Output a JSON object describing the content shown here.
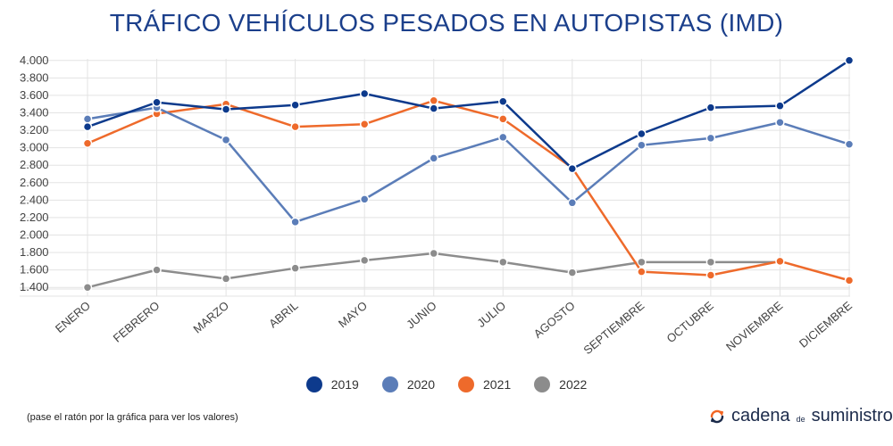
{
  "title": "TRÁFICO VEHÍCULOS PESADOS EN AUTOPISTAS (IMD)",
  "note": "(pase el ratón por la gráfica para ver los valores)",
  "brand": {
    "part1": "cadena",
    "part2": "de",
    "part3": "suministro",
    "icon": "refresh-arrows-icon",
    "icon_color": "#f26522"
  },
  "chart_data": {
    "type": "line",
    "title": "TRÁFICO VEHÍCULOS PESADOS EN AUTOPISTAS (IMD)",
    "categories": [
      "ENERO",
      "FEBRERO",
      "MARZO",
      "ABRIL",
      "MAYO",
      "JUNIO",
      "JULIO",
      "AGOSTO",
      "SEPTIEMBRE",
      "OCTUBRE",
      "NOVIEMBRE",
      "DICIEMBRE"
    ],
    "ylim": [
      1300,
      4100
    ],
    "yticks": [
      1400,
      1600,
      1800,
      2000,
      2200,
      2400,
      2600,
      2800,
      3000,
      3200,
      3400,
      3600,
      3800,
      4000
    ],
    "ytick_labels": [
      "1.400",
      "1.600",
      "1.800",
      "2.000",
      "2.200",
      "2.400",
      "2.600",
      "2.800",
      "3.000",
      "3.200",
      "3.400",
      "3.600",
      "3.800",
      "4.000"
    ],
    "grid": true,
    "legend_position": "bottom",
    "series": [
      {
        "name": "2019",
        "color": "#0d3a8c",
        "values": [
          3240,
          3520,
          3440,
          3490,
          3620,
          3450,
          3530,
          2760,
          3160,
          3460,
          3480,
          4000
        ]
      },
      {
        "name": "2020",
        "color": "#5b7db8",
        "values": [
          3330,
          3460,
          3090,
          2150,
          2410,
          2880,
          3120,
          2370,
          3030,
          3110,
          3290,
          3040
        ]
      },
      {
        "name": "2021",
        "color": "#ee6a2b",
        "values": [
          3050,
          3390,
          3500,
          3240,
          3270,
          3540,
          3330,
          2770,
          1580,
          1540,
          1700,
          1480
        ]
      },
      {
        "name": "2022",
        "color": "#8c8c8c",
        "values": [
          1400,
          1600,
          1500,
          1620,
          1710,
          1790,
          1690,
          1570,
          1690,
          1690,
          1690,
          null
        ]
      }
    ]
  }
}
